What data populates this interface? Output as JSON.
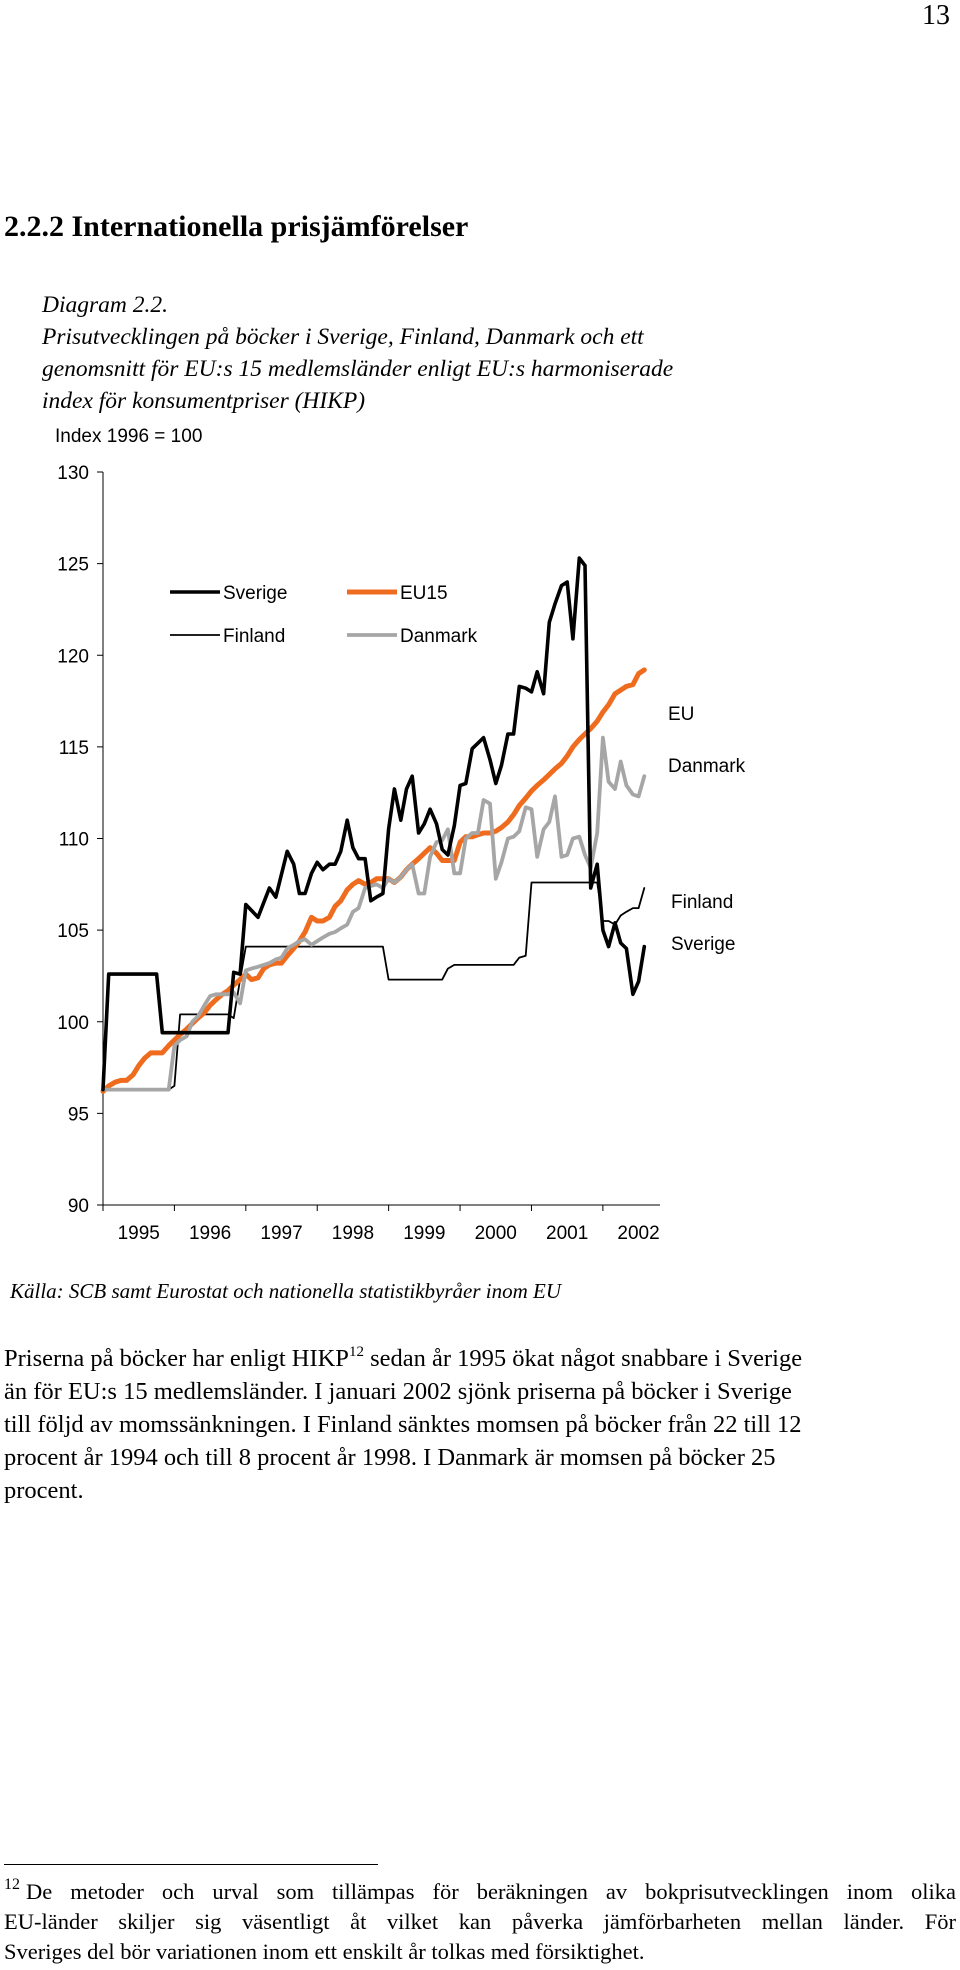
{
  "page_number": "13",
  "section_title": "2.2.2 Internationella prisjämförelser",
  "caption": {
    "label": "Diagram 2.2.",
    "lines": [
      "Prisutvecklingen på böcker i Sverige, Finland, Danmark och ett",
      "genomsnitt för EU:s 15 medlemsländer enligt EU:s harmoniserade",
      "index för konsumentpriser (HIKP)"
    ]
  },
  "chart_data": {
    "type": "line",
    "ylabel": "Index 1996 = 100",
    "ylim": [
      90,
      130
    ],
    "yticks": [
      "130",
      "125",
      "120",
      "115",
      "110",
      "105",
      "100",
      "95",
      "90"
    ],
    "xticks": [
      "1995",
      "1996",
      "1997",
      "1998",
      "1999",
      "2000",
      "2001",
      "2002"
    ],
    "xlim": [
      1995,
      2002.8
    ],
    "grid": false,
    "legend_position": "top-left",
    "end_labels": [
      "EU",
      "Danmark",
      "Finland",
      "Sverige"
    ],
    "series": [
      {
        "name": "Sverige",
        "color": "#000000",
        "points": [
          [
            1995.0,
            96.3
          ],
          [
            1995.08,
            102.6
          ],
          [
            1995.75,
            102.6
          ],
          [
            1995.83,
            99.4
          ],
          [
            1996.75,
            99.4
          ],
          [
            1996.83,
            102.7
          ],
          [
            1996.92,
            102.6
          ],
          [
            1997.0,
            106.4
          ],
          [
            1997.17,
            105.7
          ],
          [
            1997.33,
            107.3
          ],
          [
            1997.42,
            106.8
          ],
          [
            1997.58,
            109.3
          ],
          [
            1997.67,
            108.6
          ],
          [
            1997.75,
            107.0
          ],
          [
            1997.83,
            107.0
          ],
          [
            1997.92,
            108.1
          ],
          [
            1998.0,
            108.7
          ],
          [
            1998.08,
            108.3
          ],
          [
            1998.17,
            108.6
          ],
          [
            1998.25,
            108.6
          ],
          [
            1998.33,
            109.3
          ],
          [
            1998.42,
            111.0
          ],
          [
            1998.5,
            109.5
          ],
          [
            1998.58,
            108.9
          ],
          [
            1998.67,
            108.9
          ],
          [
            1998.75,
            106.6
          ],
          [
            1998.83,
            106.8
          ],
          [
            1998.92,
            107.0
          ],
          [
            1999.0,
            110.5
          ],
          [
            1999.08,
            112.7
          ],
          [
            1999.17,
            111.0
          ],
          [
            1999.25,
            112.7
          ],
          [
            1999.33,
            113.4
          ],
          [
            1999.42,
            110.3
          ],
          [
            1999.5,
            110.8
          ],
          [
            1999.58,
            111.6
          ],
          [
            1999.67,
            110.8
          ],
          [
            1999.75,
            109.4
          ],
          [
            1999.83,
            109.1
          ],
          [
            1999.92,
            110.7
          ],
          [
            2000.0,
            112.9
          ],
          [
            2000.08,
            113.0
          ],
          [
            2000.17,
            114.9
          ],
          [
            2000.25,
            115.2
          ],
          [
            2000.33,
            115.5
          ],
          [
            2000.42,
            114.3
          ],
          [
            2000.5,
            113.0
          ],
          [
            2000.58,
            114.0
          ],
          [
            2000.67,
            115.7
          ],
          [
            2000.75,
            115.7
          ],
          [
            2000.83,
            118.3
          ],
          [
            2000.92,
            118.2
          ],
          [
            2001.0,
            118.0
          ],
          [
            2001.08,
            119.1
          ],
          [
            2001.17,
            117.9
          ],
          [
            2001.25,
            121.8
          ],
          [
            2001.33,
            122.8
          ],
          [
            2001.42,
            123.8
          ],
          [
            2001.5,
            124.0
          ],
          [
            2001.58,
            120.9
          ],
          [
            2001.67,
            125.3
          ],
          [
            2001.75,
            124.9
          ],
          [
            2001.83,
            107.3
          ],
          [
            2001.92,
            108.6
          ],
          [
            2002.0,
            105.0
          ],
          [
            2002.08,
            104.1
          ],
          [
            2002.17,
            105.4
          ],
          [
            2002.25,
            104.3
          ],
          [
            2002.33,
            104.0
          ],
          [
            2002.42,
            101.5
          ],
          [
            2002.5,
            102.2
          ],
          [
            2002.58,
            104.1
          ]
        ]
      },
      {
        "name": "Finland",
        "color": "#000000",
        "points": [
          [
            1995.0,
            96.3
          ],
          [
            1995.92,
            96.3
          ],
          [
            1996.0,
            96.5
          ],
          [
            1996.08,
            100.4
          ],
          [
            1996.75,
            100.4
          ],
          [
            1996.83,
            100.2
          ],
          [
            1996.92,
            102.3
          ],
          [
            1997.0,
            104.1
          ],
          [
            1998.92,
            104.1
          ],
          [
            1999.0,
            102.3
          ],
          [
            1999.75,
            102.3
          ],
          [
            1999.83,
            102.9
          ],
          [
            1999.92,
            103.1
          ],
          [
            2000.75,
            103.1
          ],
          [
            2000.83,
            103.5
          ],
          [
            2000.92,
            103.6
          ],
          [
            2001.0,
            107.6
          ],
          [
            2001.92,
            107.6
          ],
          [
            2002.0,
            105.5
          ],
          [
            2002.08,
            105.5
          ],
          [
            2002.17,
            105.3
          ],
          [
            2002.25,
            105.8
          ],
          [
            2002.33,
            106.0
          ],
          [
            2002.42,
            106.2
          ],
          [
            2002.5,
            106.2
          ],
          [
            2002.58,
            107.3
          ]
        ]
      },
      {
        "name": "EU15",
        "color": "#ef6c1f",
        "points": [
          [
            1995.0,
            96.2
          ],
          [
            1995.08,
            96.5
          ],
          [
            1995.17,
            96.7
          ],
          [
            1995.25,
            96.8
          ],
          [
            1995.33,
            96.8
          ],
          [
            1995.42,
            97.1
          ],
          [
            1995.5,
            97.6
          ],
          [
            1995.58,
            98.0
          ],
          [
            1995.67,
            98.3
          ],
          [
            1995.75,
            98.3
          ],
          [
            1995.83,
            98.3
          ],
          [
            1995.92,
            98.7
          ],
          [
            1996.0,
            99.0
          ],
          [
            1996.08,
            99.3
          ],
          [
            1996.17,
            99.6
          ],
          [
            1996.25,
            99.9
          ],
          [
            1996.33,
            100.2
          ],
          [
            1996.42,
            100.5
          ],
          [
            1996.5,
            100.9
          ],
          [
            1996.58,
            101.2
          ],
          [
            1996.67,
            101.5
          ],
          [
            1996.75,
            101.7
          ],
          [
            1996.83,
            102.0
          ],
          [
            1996.92,
            102.3
          ],
          [
            1997.0,
            102.6
          ],
          [
            1997.08,
            102.3
          ],
          [
            1997.17,
            102.4
          ],
          [
            1997.25,
            102.9
          ],
          [
            1997.33,
            103.1
          ],
          [
            1997.42,
            103.2
          ],
          [
            1997.5,
            103.2
          ],
          [
            1997.58,
            103.6
          ],
          [
            1997.67,
            104.0
          ],
          [
            1997.75,
            104.4
          ],
          [
            1997.83,
            104.9
          ],
          [
            1997.92,
            105.7
          ],
          [
            1998.0,
            105.5
          ],
          [
            1998.08,
            105.5
          ],
          [
            1998.17,
            105.7
          ],
          [
            1998.25,
            106.3
          ],
          [
            1998.33,
            106.6
          ],
          [
            1998.42,
            107.2
          ],
          [
            1998.5,
            107.5
          ],
          [
            1998.58,
            107.7
          ],
          [
            1998.67,
            107.5
          ],
          [
            1998.75,
            107.6
          ],
          [
            1998.83,
            107.8
          ],
          [
            1998.92,
            107.8
          ],
          [
            1999.0,
            107.8
          ],
          [
            1999.08,
            107.6
          ],
          [
            1999.17,
            107.9
          ],
          [
            1999.25,
            108.3
          ],
          [
            1999.33,
            108.6
          ],
          [
            1999.42,
            108.9
          ],
          [
            1999.5,
            109.2
          ],
          [
            1999.58,
            109.5
          ],
          [
            1999.67,
            109.2
          ],
          [
            1999.75,
            108.8
          ],
          [
            1999.83,
            108.8
          ],
          [
            1999.92,
            108.8
          ],
          [
            2000.0,
            109.8
          ],
          [
            2000.08,
            110.1
          ],
          [
            2000.17,
            110.1
          ],
          [
            2000.25,
            110.2
          ],
          [
            2000.33,
            110.3
          ],
          [
            2000.42,
            110.3
          ],
          [
            2000.5,
            110.4
          ],
          [
            2000.58,
            110.6
          ],
          [
            2000.67,
            110.9
          ],
          [
            2000.75,
            111.3
          ],
          [
            2000.83,
            111.8
          ],
          [
            2000.92,
            112.2
          ],
          [
            2001.0,
            112.6
          ],
          [
            2001.08,
            112.9
          ],
          [
            2001.17,
            113.2
          ],
          [
            2001.25,
            113.5
          ],
          [
            2001.33,
            113.8
          ],
          [
            2001.42,
            114.1
          ],
          [
            2001.5,
            114.5
          ],
          [
            2001.58,
            115.0
          ],
          [
            2001.67,
            115.4
          ],
          [
            2001.75,
            115.7
          ],
          [
            2001.83,
            116.0
          ],
          [
            2001.92,
            116.4
          ],
          [
            2002.0,
            116.9
          ],
          [
            2002.08,
            117.3
          ],
          [
            2002.17,
            117.9
          ],
          [
            2002.25,
            118.1
          ],
          [
            2002.33,
            118.3
          ],
          [
            2002.42,
            118.4
          ],
          [
            2002.5,
            119.0
          ],
          [
            2002.58,
            119.2
          ]
        ]
      },
      {
        "name": "Danmark",
        "color": "#a6a6a6",
        "points": [
          [
            1995.0,
            96.3
          ],
          [
            1995.92,
            96.3
          ],
          [
            1996.0,
            98.7
          ],
          [
            1996.08,
            99.0
          ],
          [
            1996.17,
            99.2
          ],
          [
            1996.25,
            100.0
          ],
          [
            1996.33,
            100.3
          ],
          [
            1996.42,
            100.9
          ],
          [
            1996.5,
            101.4
          ],
          [
            1996.58,
            101.5
          ],
          [
            1996.67,
            101.5
          ],
          [
            1996.75,
            101.5
          ],
          [
            1996.83,
            101.6
          ],
          [
            1996.92,
            101.0
          ],
          [
            1997.0,
            102.8
          ],
          [
            1997.08,
            102.9
          ],
          [
            1997.17,
            103.0
          ],
          [
            1997.33,
            103.2
          ],
          [
            1997.42,
            103.4
          ],
          [
            1997.5,
            103.5
          ],
          [
            1997.58,
            104.0
          ],
          [
            1997.67,
            104.2
          ],
          [
            1997.75,
            104.4
          ],
          [
            1997.83,
            104.5
          ],
          [
            1997.92,
            104.2
          ],
          [
            1998.0,
            104.4
          ],
          [
            1998.08,
            104.6
          ],
          [
            1998.17,
            104.8
          ],
          [
            1998.25,
            104.9
          ],
          [
            1998.33,
            105.1
          ],
          [
            1998.42,
            105.3
          ],
          [
            1998.5,
            106.0
          ],
          [
            1998.58,
            106.2
          ],
          [
            1998.67,
            107.3
          ],
          [
            1998.75,
            107.4
          ],
          [
            1998.83,
            107.5
          ],
          [
            1998.92,
            107.3
          ],
          [
            1999.0,
            107.8
          ],
          [
            1999.08,
            107.6
          ],
          [
            1999.17,
            107.9
          ],
          [
            1999.25,
            108.3
          ],
          [
            1999.33,
            108.6
          ],
          [
            1999.42,
            107.0
          ],
          [
            1999.5,
            107.0
          ],
          [
            1999.58,
            109.0
          ],
          [
            1999.67,
            109.8
          ],
          [
            1999.75,
            109.9
          ],
          [
            1999.83,
            110.5
          ],
          [
            1999.92,
            108.1
          ],
          [
            2000.0,
            108.1
          ],
          [
            2000.08,
            110.0
          ],
          [
            2000.17,
            110.3
          ],
          [
            2000.25,
            110.3
          ],
          [
            2000.33,
            112.1
          ],
          [
            2000.42,
            111.9
          ],
          [
            2000.5,
            107.8
          ],
          [
            2000.58,
            108.7
          ],
          [
            2000.67,
            110.0
          ],
          [
            2000.75,
            110.1
          ],
          [
            2000.83,
            110.4
          ],
          [
            2000.92,
            111.7
          ],
          [
            2001.0,
            111.6
          ],
          [
            2001.08,
            109.0
          ],
          [
            2001.17,
            110.5
          ],
          [
            2001.25,
            110.9
          ],
          [
            2001.33,
            112.3
          ],
          [
            2001.42,
            109.0
          ],
          [
            2001.5,
            109.1
          ],
          [
            2001.58,
            110.0
          ],
          [
            2001.67,
            110.1
          ],
          [
            2001.75,
            109.1
          ],
          [
            2001.83,
            108.4
          ],
          [
            2001.92,
            110.3
          ],
          [
            2002.0,
            115.5
          ],
          [
            2002.08,
            113.1
          ],
          [
            2002.17,
            112.7
          ],
          [
            2002.25,
            114.2
          ],
          [
            2002.33,
            112.9
          ],
          [
            2002.42,
            112.4
          ],
          [
            2002.5,
            112.3
          ],
          [
            2002.58,
            113.4
          ]
        ]
      }
    ]
  },
  "source": "Källa: SCB samt Eurostat och nationella statistikbyråer inom EU",
  "body": {
    "line1_before": "Priserna på böcker har enligt HIKP",
    "footnote_ref": "12",
    "line1_after": " sedan år 1995 ökat något snabbare i Sverige",
    "lines": [
      "än för EU:s 15 medlemsländer. I januari 2002 sjönk priserna på böcker i Sverige",
      "till följd av momssänkningen. I Finland sänktes momsen på böcker från 22 till 12",
      "procent år 1994 och till 8 procent år 1998. I Danmark är momsen på böcker 25",
      "procent."
    ]
  },
  "footnote": {
    "number": "12",
    "line1": "De metoder och urval som tillämpas för beräkningen av bokprisutvecklingen inom olika",
    "line2": "EU-länder skiljer sig väsentligt åt vilket kan påverka jämförbarheten mellan länder. För",
    "line3": "Sveriges del bör variationen inom ett enskilt år tolkas med försiktighet."
  }
}
